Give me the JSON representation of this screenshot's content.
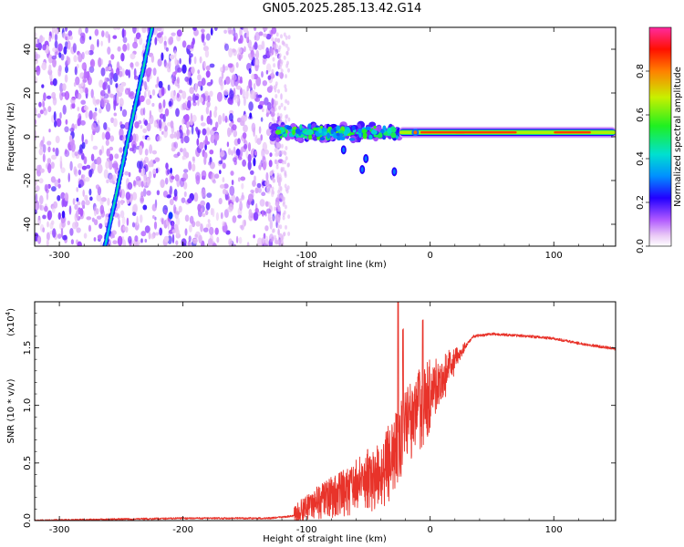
{
  "title": "GN05.2025.285.13.42.G14",
  "chart_data": [
    {
      "type": "heatmap",
      "name": "spectrogram",
      "xlabel": "Height of straight line (km)",
      "ylabel": "Frequency (Hz)",
      "xlim": [
        -320,
        150
      ],
      "ylim": [
        -50,
        50
      ],
      "xticks": [
        -300,
        -200,
        -100,
        0,
        100
      ],
      "yticks": [
        -40,
        -20,
        0,
        20,
        40
      ],
      "xtick_labels": [
        "-300",
        "-200",
        "-100",
        "0",
        "100"
      ],
      "ytick_labels": [
        "-40",
        "-20",
        "0",
        "20",
        "40"
      ],
      "colorbar": {
        "label": "Normalized spectral amplitude",
        "range": [
          0,
          1
        ],
        "ticks": [
          0,
          0.2,
          0.4,
          0.6,
          0.8
        ],
        "tick_labels": [
          "0.0",
          "0.2",
          "0.4",
          "0.6",
          "0.8"
        ]
      },
      "features": [
        {
          "name": "diagonal streak",
          "x_start": -263,
          "y_start": -50,
          "x_end": -225,
          "y_end": 50,
          "amplitude": 0.3
        },
        {
          "name": "diffuse noise region",
          "x_range": [
            -320,
            -128
          ],
          "amplitude": 0.15
        },
        {
          "name": "turbulent band",
          "x_range": [
            -128,
            -25
          ],
          "frequency": 2,
          "amplitude": 0.4
        },
        {
          "name": "stable line",
          "x_range": [
            -25,
            150
          ],
          "frequency": 2,
          "amplitude": 1.0
        }
      ]
    },
    {
      "type": "line",
      "name": "snr",
      "xlabel": "Height of straight line (km)",
      "ylabel": "SNR (10 * v/v)",
      "multiplier": "(x10",
      "multiplier_exp": "4",
      "multiplier_close": ")",
      "xlim": [
        -320,
        150
      ],
      "ylim": [
        0,
        1.9
      ],
      "xticks": [
        -300,
        -200,
        -100,
        0,
        100
      ],
      "yticks": [
        0,
        0.5,
        1.0,
        1.5
      ],
      "xtick_labels": [
        "-300",
        "-200",
        "-100",
        "0",
        "100"
      ],
      "ytick_labels": [
        "0.0",
        "0.5",
        "1.0",
        "1.5"
      ],
      "color": "#e8332a",
      "x": [
        -320,
        -200,
        -130,
        -110,
        -100,
        -80,
        -60,
        -40,
        -30,
        -25,
        -20,
        -10,
        0,
        20,
        35,
        50,
        80,
        100,
        120,
        150
      ],
      "y": [
        0.0,
        0.02,
        0.02,
        0.04,
        0.12,
        0.2,
        0.3,
        0.4,
        0.55,
        0.7,
        0.8,
        0.95,
        1.05,
        1.4,
        1.6,
        1.62,
        1.6,
        1.58,
        1.54,
        1.49
      ]
    }
  ]
}
